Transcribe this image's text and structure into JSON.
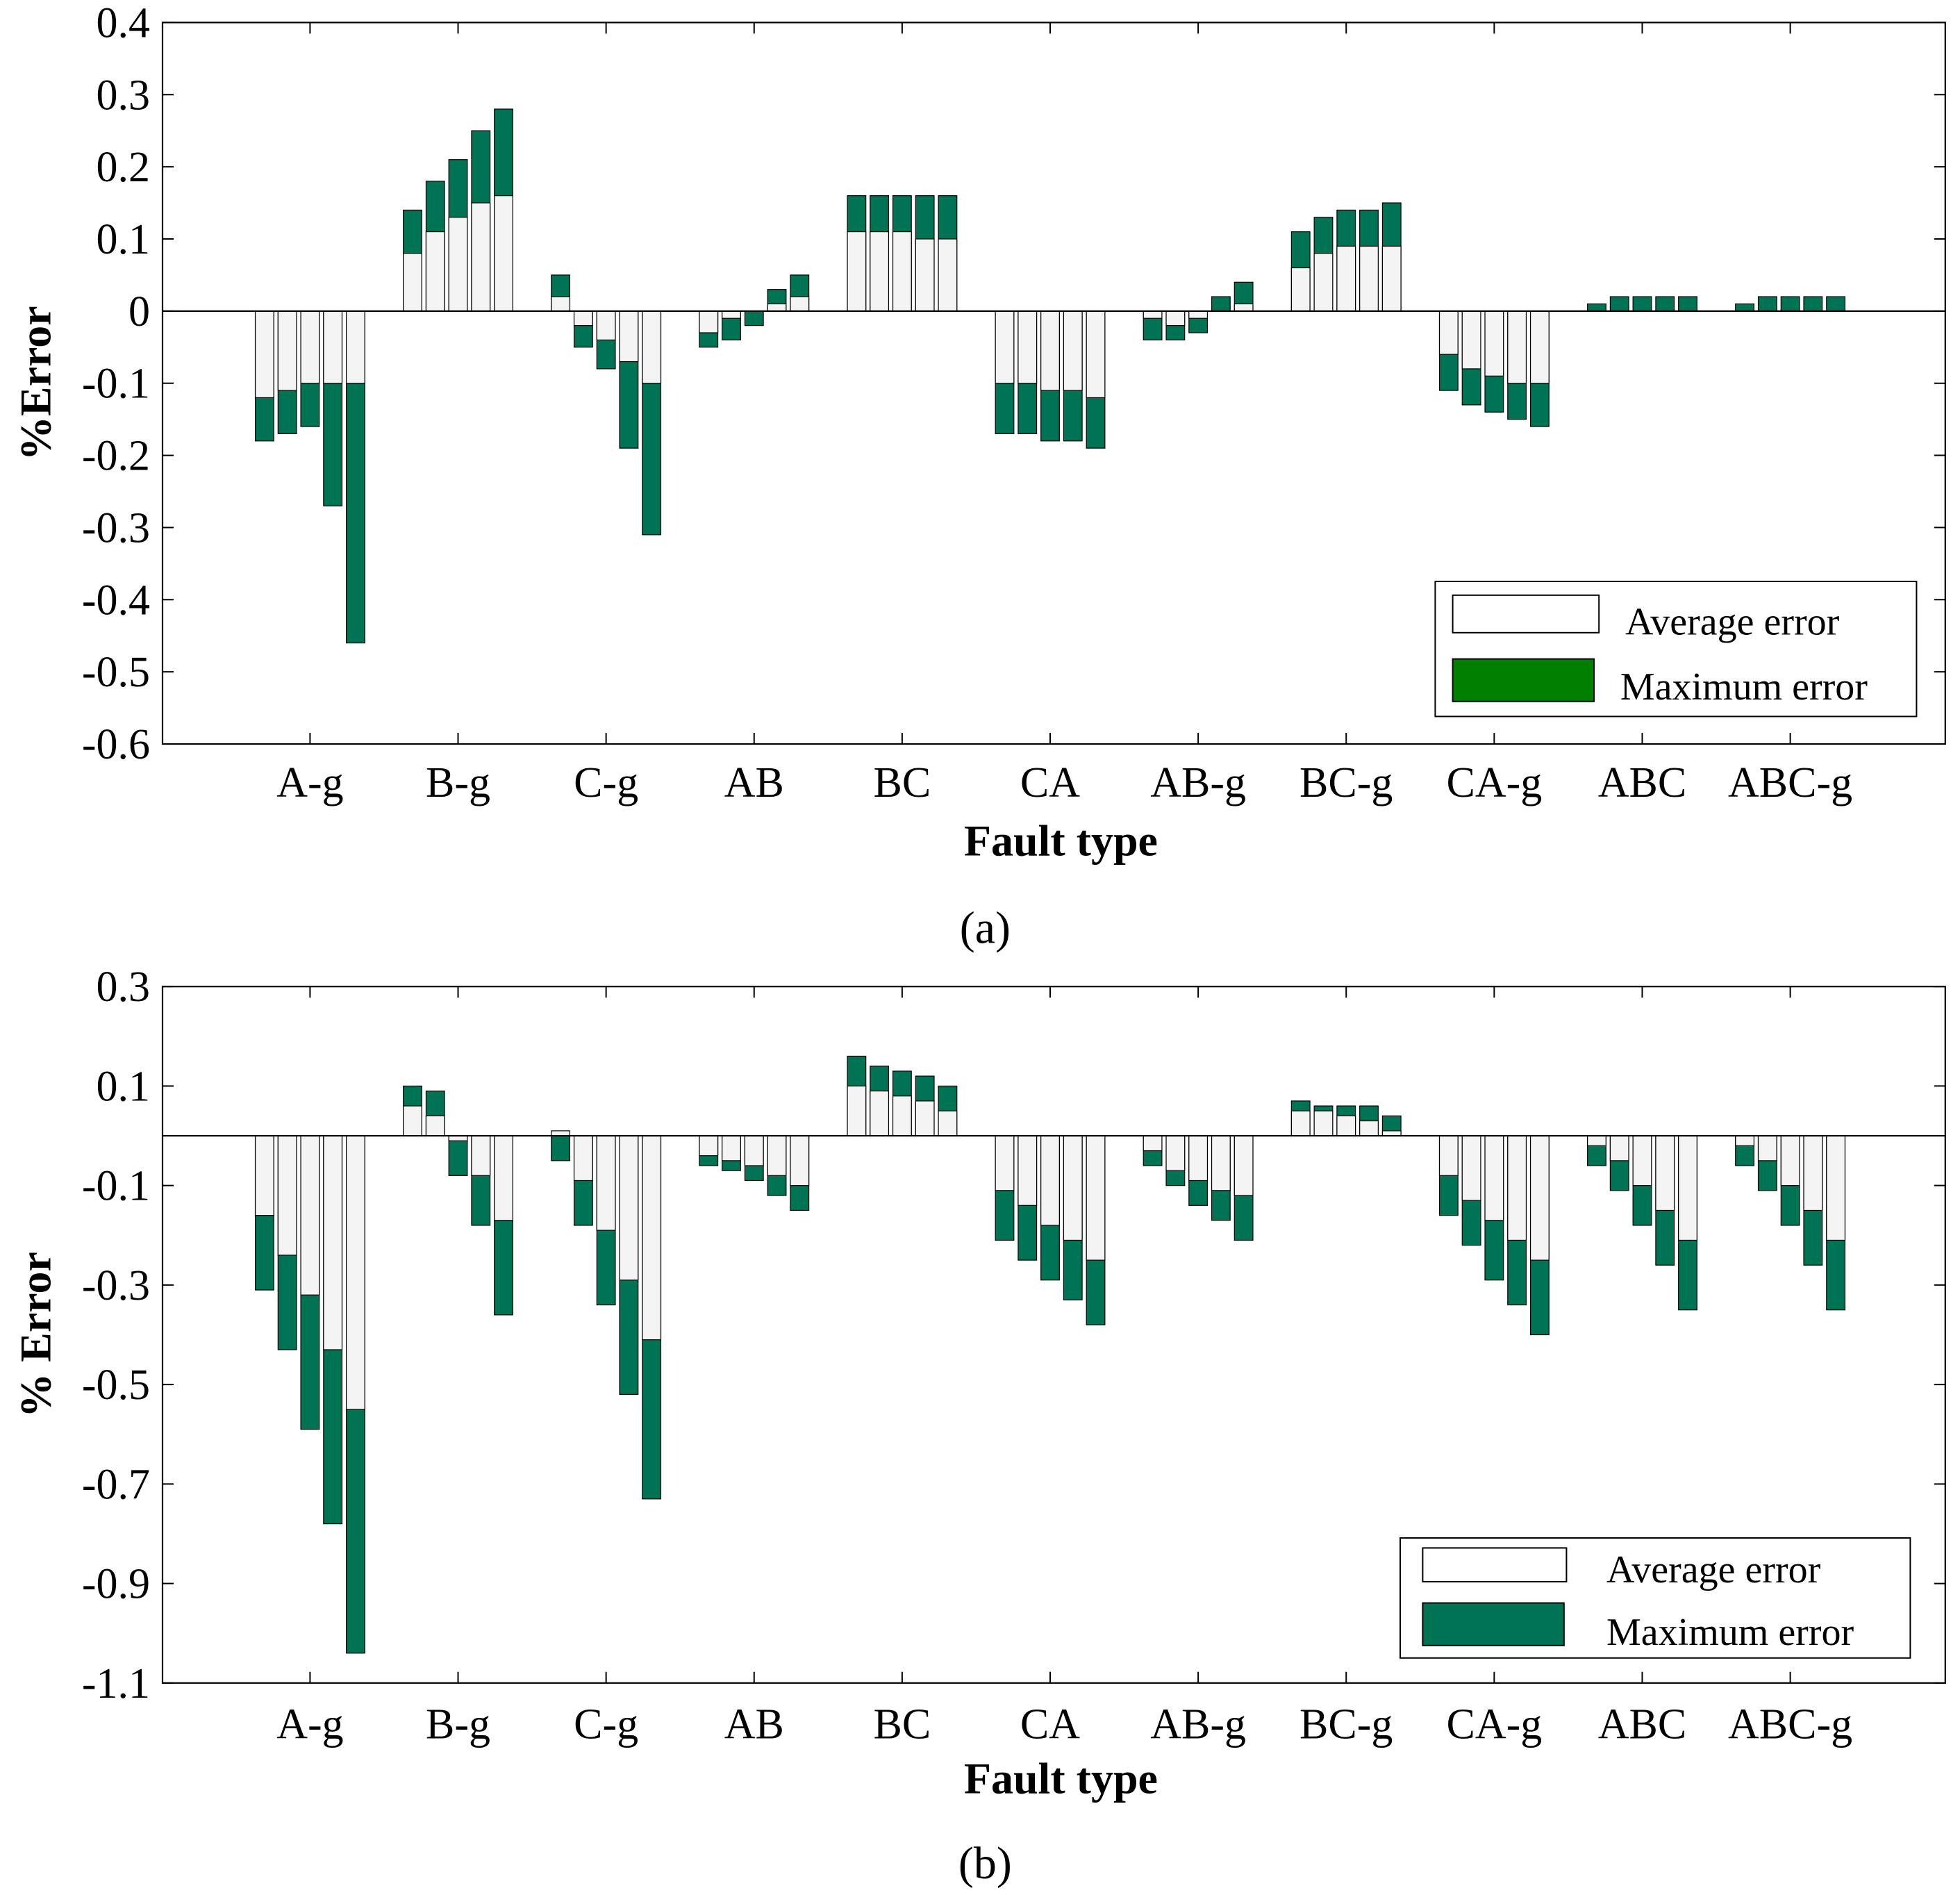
{
  "colors": {
    "average": "#f4f4f4",
    "maximum": "#007355",
    "maximum_legend_a": "#008000",
    "axis": "#000000"
  },
  "chart_data": [
    {
      "type": "bar",
      "panel_label": "(a)",
      "xlabel": "Fault type",
      "ylabel": "%Error",
      "ylim": [
        -0.6,
        0.4
      ],
      "yticks": [
        "0.4",
        "0.3",
        "0.2",
        "0.1",
        "0",
        "-0.1",
        "-0.2",
        "-0.3",
        "-0.4",
        "-0.5",
        "-0.6"
      ],
      "ytick_values": [
        0.4,
        0.3,
        0.2,
        0.1,
        0,
        -0.1,
        -0.2,
        -0.3,
        -0.4,
        -0.5,
        -0.6
      ],
      "categories": [
        "A-g",
        "B-g",
        "C-g",
        "AB",
        "BC",
        "CA",
        "AB-g",
        "BC-g",
        "CA-g",
        "ABC",
        "ABC-g"
      ],
      "bars_per_category": 5,
      "legend": {
        "position": "bottom-right",
        "average_label": "Average error",
        "maximum_label": "Maximum error"
      },
      "series": [
        {
          "name": "Average error",
          "values": [
            [
              -0.12,
              -0.11,
              -0.1,
              -0.1,
              -0.1
            ],
            [
              0.08,
              0.11,
              0.13,
              0.15,
              0.16
            ],
            [
              0.02,
              -0.02,
              -0.04,
              -0.07,
              -0.1
            ],
            [
              -0.03,
              -0.01,
              0.0,
              0.01,
              0.02
            ],
            [
              0.11,
              0.11,
              0.11,
              0.1,
              0.1
            ],
            [
              -0.1,
              -0.1,
              -0.11,
              -0.11,
              -0.12
            ],
            [
              -0.01,
              -0.02,
              -0.01,
              0.0,
              0.01
            ],
            [
              0.06,
              0.08,
              0.09,
              0.09,
              0.09
            ],
            [
              -0.06,
              -0.08,
              -0.09,
              -0.1,
              -0.1
            ],
            [
              0.0,
              0.0,
              0.0,
              0.0,
              0.0
            ],
            [
              0.0,
              0.0,
              0.0,
              0.0,
              0.0
            ]
          ]
        },
        {
          "name": "Maximum error",
          "values": [
            [
              -0.18,
              -0.17,
              -0.16,
              -0.27,
              -0.46
            ],
            [
              0.14,
              0.18,
              0.21,
              0.25,
              0.28
            ],
            [
              0.05,
              -0.05,
              -0.08,
              -0.19,
              -0.31
            ],
            [
              -0.05,
              -0.04,
              -0.02,
              0.03,
              0.05
            ],
            [
              0.16,
              0.16,
              0.16,
              0.16,
              0.16
            ],
            [
              -0.17,
              -0.17,
              -0.18,
              -0.18,
              -0.19
            ],
            [
              -0.04,
              -0.04,
              -0.03,
              0.02,
              0.04
            ],
            [
              0.11,
              0.13,
              0.14,
              0.14,
              0.15
            ],
            [
              -0.11,
              -0.13,
              -0.14,
              -0.15,
              -0.16
            ],
            [
              0.01,
              0.02,
              0.02,
              0.02,
              0.02
            ],
            [
              0.01,
              0.02,
              0.02,
              0.02,
              0.02
            ]
          ]
        }
      ]
    },
    {
      "type": "bar",
      "panel_label": "(b)",
      "xlabel": "Fault type",
      "ylabel": "% Error",
      "ylim": [
        -1.1,
        0.3
      ],
      "yticks": [
        "0.3",
        "0.1",
        "-0.1",
        "-0.3",
        "-0.5",
        "-0.7",
        "-0.9",
        "-1.1"
      ],
      "ytick_values": [
        0.3,
        0.1,
        -0.1,
        -0.3,
        -0.5,
        -0.7,
        -0.9,
        -1.1
      ],
      "categories": [
        "A-g",
        "B-g",
        "C-g",
        "AB",
        "BC",
        "CA",
        "AB-g",
        "BC-g",
        "CA-g",
        "ABC",
        "ABC-g"
      ],
      "bars_per_category": 5,
      "legend": {
        "position": "bottom-right",
        "average_label": "Average error",
        "maximum_label": "Maximum error"
      },
      "series": [
        {
          "name": "Average error",
          "values": [
            [
              -0.16,
              -0.24,
              -0.32,
              -0.43,
              -0.55
            ],
            [
              0.06,
              0.04,
              -0.01,
              -0.08,
              -0.17
            ],
            [
              0.01,
              -0.09,
              -0.19,
              -0.29,
              -0.41
            ],
            [
              -0.04,
              -0.05,
              -0.06,
              -0.08,
              -0.1
            ],
            [
              0.1,
              0.09,
              0.08,
              0.07,
              0.05
            ],
            [
              -0.11,
              -0.14,
              -0.18,
              -0.21,
              -0.25
            ],
            [
              -0.03,
              -0.07,
              -0.09,
              -0.11,
              -0.12
            ],
            [
              0.05,
              0.05,
              0.04,
              0.03,
              0.01
            ],
            [
              -0.08,
              -0.13,
              -0.17,
              -0.21,
              -0.25
            ],
            [
              -0.02,
              -0.05,
              -0.1,
              -0.15,
              -0.21
            ],
            [
              -0.02,
              -0.05,
              -0.1,
              -0.15,
              -0.21
            ]
          ]
        },
        {
          "name": "Maximum error",
          "values": [
            [
              -0.31,
              -0.43,
              -0.59,
              -0.78,
              -1.04
            ],
            [
              0.1,
              0.09,
              -0.08,
              -0.18,
              -0.36
            ],
            [
              -0.05,
              -0.18,
              -0.34,
              -0.52,
              -0.73
            ],
            [
              -0.06,
              -0.07,
              -0.09,
              -0.12,
              -0.15
            ],
            [
              0.16,
              0.14,
              0.13,
              0.12,
              0.1
            ],
            [
              -0.21,
              -0.25,
              -0.29,
              -0.33,
              -0.38
            ],
            [
              -0.06,
              -0.1,
              -0.14,
              -0.17,
              -0.21
            ],
            [
              0.07,
              0.06,
              0.06,
              0.06,
              0.04
            ],
            [
              -0.16,
              -0.22,
              -0.29,
              -0.34,
              -0.4
            ],
            [
              -0.06,
              -0.11,
              -0.18,
              -0.26,
              -0.35
            ],
            [
              -0.06,
              -0.11,
              -0.18,
              -0.26,
              -0.35
            ]
          ]
        }
      ]
    }
  ]
}
